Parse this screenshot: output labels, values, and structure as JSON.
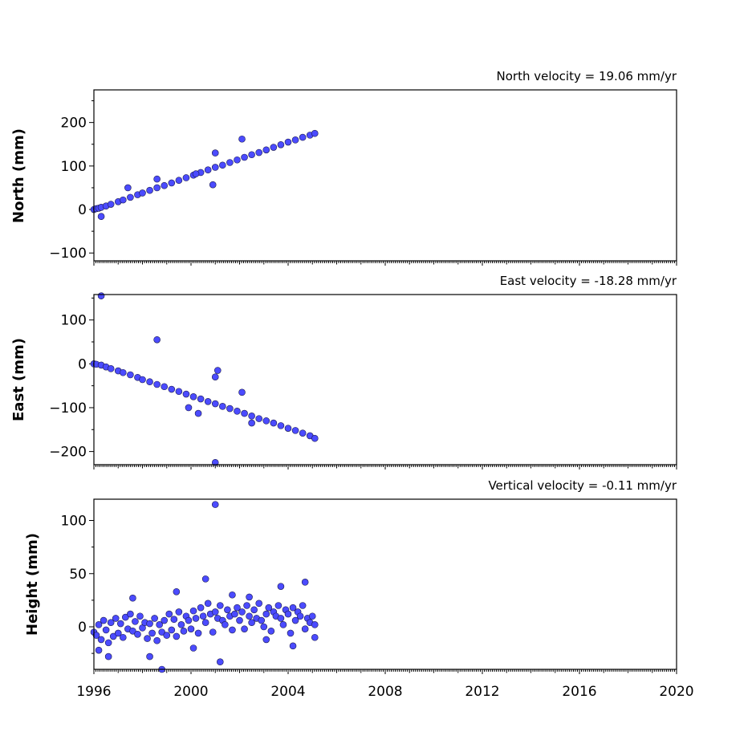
{
  "chart_data": [
    {
      "type": "scatter",
      "title": "North velocity = 19.06 mm/yr",
      "ylabel": "North (mm)",
      "xlim": [
        1996,
        2020
      ],
      "ylim": [
        -118,
        275
      ],
      "yticks": [
        -100,
        0,
        100,
        200
      ],
      "x": [
        1996.0,
        1996.1,
        1996.2,
        1996.3,
        1996.5,
        1996.7,
        1997.0,
        1997.2,
        1997.5,
        1997.8,
        1998.0,
        1998.3,
        1998.6,
        1998.9,
        1999.2,
        1999.5,
        1999.8,
        2000.1,
        2000.4,
        2000.7,
        2001.0,
        2001.3,
        2001.6,
        2001.9,
        2002.2,
        2002.5,
        2002.8,
        2003.1,
        2003.4,
        2003.7,
        2004.0,
        2004.3,
        2004.6,
        2004.9,
        2005.1,
        1996.3,
        1998.6,
        2000.9,
        2001.0,
        2002.1,
        2000.2,
        1997.4
      ],
      "values": [
        0,
        2,
        3,
        5,
        8,
        12,
        18,
        22,
        28,
        34,
        38,
        44,
        50,
        55,
        61,
        67,
        73,
        79,
        85,
        91,
        97,
        102,
        108,
        114,
        120,
        126,
        131,
        137,
        143,
        149,
        155,
        160,
        166,
        171,
        175,
        -16,
        70,
        57,
        130,
        162,
        82,
        50
      ],
      "point_color": "#4b4bff",
      "xlabel": "",
      "grid": false
    },
    {
      "type": "scatter",
      "title": "East velocity = -18.28 mm/yr",
      "ylabel": "East (mm)",
      "xlim": [
        1996,
        2020
      ],
      "ylim": [
        -230,
        158
      ],
      "yticks": [
        -200,
        -100,
        0,
        100
      ],
      "x": [
        1996.0,
        1996.1,
        1996.3,
        1996.5,
        1996.7,
        1997.0,
        1997.2,
        1997.5,
        1997.8,
        1998.0,
        1998.3,
        1998.6,
        1998.9,
        1999.2,
        1999.5,
        1999.8,
        2000.1,
        2000.4,
        2000.7,
        2001.0,
        2001.3,
        2001.6,
        2001.9,
        2002.2,
        2002.5,
        2002.8,
        2003.1,
        2003.4,
        2003.7,
        2004.0,
        2004.3,
        2004.6,
        2004.9,
        2005.1,
        1996.3,
        1998.6,
        2001.1,
        2001.0,
        2002.1,
        2001.0,
        1999.9,
        2000.3,
        2002.5
      ],
      "values": [
        0,
        -1,
        -3,
        -7,
        -11,
        -16,
        -20,
        -25,
        -31,
        -36,
        -41,
        -47,
        -52,
        -58,
        -63,
        -69,
        -75,
        -80,
        -86,
        -91,
        -97,
        -102,
        -108,
        -113,
        -119,
        -125,
        -130,
        -135,
        -141,
        -147,
        -152,
        -158,
        -164,
        -170,
        155,
        55,
        -15,
        -30,
        -65,
        -225,
        -100,
        -113,
        -135
      ],
      "point_color": "#4b4bff",
      "xlabel": "",
      "grid": false
    },
    {
      "type": "scatter",
      "title": "Vertical velocity = -0.11 mm/yr",
      "ylabel": "Height (mm)",
      "xlim": [
        1996,
        2020
      ],
      "ylim": [
        -40,
        120
      ],
      "yticks": [
        0,
        50,
        100
      ],
      "xticks": [
        1996,
        2000,
        2004,
        2008,
        2012,
        2016,
        2020
      ],
      "x": [
        1996.0,
        1996.1,
        1996.2,
        1996.3,
        1996.4,
        1996.5,
        1996.6,
        1996.7,
        1996.8,
        1996.9,
        1997.0,
        1997.1,
        1997.2,
        1997.3,
        1997.4,
        1997.5,
        1997.6,
        1997.7,
        1997.8,
        1997.9,
        1998.0,
        1998.1,
        1998.2,
        1998.3,
        1998.4,
        1998.5,
        1998.6,
        1998.7,
        1998.8,
        1998.9,
        1999.0,
        1999.1,
        1999.2,
        1999.3,
        1999.4,
        1999.5,
        1999.6,
        1999.7,
        1999.8,
        1999.9,
        2000.0,
        2000.1,
        2000.2,
        2000.3,
        2000.4,
        2000.5,
        2000.6,
        2000.7,
        2000.8,
        2000.9,
        2001.0,
        2001.1,
        2001.2,
        2001.3,
        2001.4,
        2001.5,
        2001.6,
        2001.7,
        2001.8,
        2001.9,
        2002.0,
        2002.1,
        2002.2,
        2002.3,
        2002.4,
        2002.5,
        2002.6,
        2002.7,
        2002.8,
        2002.9,
        2003.0,
        2003.1,
        2003.2,
        2003.3,
        2003.4,
        2003.5,
        2003.6,
        2003.7,
        2003.8,
        2003.9,
        2004.0,
        2004.1,
        2004.2,
        2004.3,
        2004.4,
        2004.5,
        2004.6,
        2004.7,
        2004.8,
        2004.9,
        2005.0,
        2005.1,
        2001.0,
        2001.2,
        1998.8,
        2000.6,
        2003.7,
        2004.7,
        2005.1,
        1997.6,
        1996.2,
        1999.4,
        2001.7,
        2002.4,
        2003.1,
        1996.6,
        1998.3,
        2000.1,
        2004.2
      ],
      "values": [
        -5,
        -8,
        2,
        -12,
        6,
        -3,
        -15,
        4,
        -9,
        8,
        -6,
        3,
        -10,
        9,
        -2,
        12,
        -4,
        5,
        -7,
        10,
        -1,
        4,
        -11,
        3,
        -6,
        8,
        -13,
        2,
        -5,
        6,
        -8,
        12,
        -3,
        7,
        -9,
        14,
        2,
        -4,
        10,
        6,
        -2,
        15,
        8,
        -6,
        18,
        10,
        4,
        22,
        12,
        -5,
        14,
        8,
        20,
        6,
        2,
        16,
        10,
        -3,
        12,
        18,
        6,
        14,
        -2,
        20,
        10,
        4,
        16,
        8,
        22,
        6,
        0,
        12,
        18,
        -4,
        14,
        10,
        20,
        8,
        2,
        16,
        12,
        -6,
        18,
        6,
        14,
        10,
        20,
        -2,
        8,
        4,
        10,
        -10,
        115,
        -33,
        -40,
        45,
        38,
        42,
        2,
        27,
        -22,
        33,
        30,
        28,
        -12,
        -28,
        -28,
        -20,
        -18
      ],
      "point_color": "#4b4bff",
      "xlabel": "",
      "grid": false
    }
  ]
}
